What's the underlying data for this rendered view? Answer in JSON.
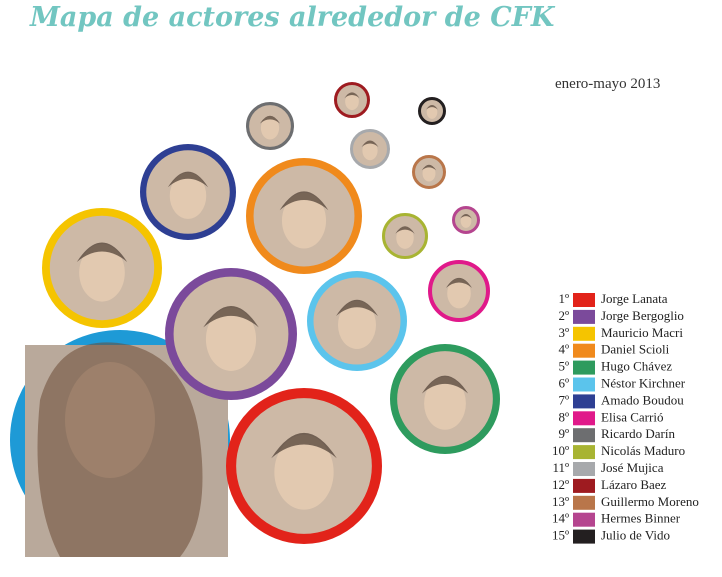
{
  "header": {
    "title": "Mapa de actores alrededor de CFK",
    "subtitle": "enero-mayo 2013"
  },
  "legend": [
    {
      "rank": "1º",
      "name": "Jorge Lanata",
      "color": "#e2231a"
    },
    {
      "rank": "2º",
      "name": "Jorge Bergoglio",
      "color": "#7b4a9b"
    },
    {
      "rank": "3º",
      "name": "Mauricio Macri",
      "color": "#f5c400"
    },
    {
      "rank": "4º",
      "name": "Daniel Scioli",
      "color": "#f08a1c"
    },
    {
      "rank": "5º",
      "name": "Hugo Chávez",
      "color": "#2e9b5e"
    },
    {
      "rank": "6º",
      "name": "Néstor Kirchner",
      "color": "#5bc4ec"
    },
    {
      "rank": "7º",
      "name": "Amado Boudou",
      "color": "#2e3f93"
    },
    {
      "rank": "8º",
      "name": "Elisa Carrió",
      "color": "#e0198a"
    },
    {
      "rank": "9º",
      "name": "Ricardo Darín",
      "color": "#6d6e70"
    },
    {
      "rank": "10º",
      "name": "Nicolás Maduro",
      "color": "#a8b432"
    },
    {
      "rank": "11º",
      "name": "José Mujica",
      "color": "#a7a9ac"
    },
    {
      "rank": "12º",
      "name": "Lázaro Baez",
      "color": "#9e1b20"
    },
    {
      "rank": "13º",
      "name": "Guillermo Moreno",
      "color": "#b9764a"
    },
    {
      "rank": "14º",
      "name": "Hermes Binner",
      "color": "#b5458f"
    },
    {
      "rank": "15º",
      "name": "Julio de Vido",
      "color": "#231f20"
    }
  ]
}
